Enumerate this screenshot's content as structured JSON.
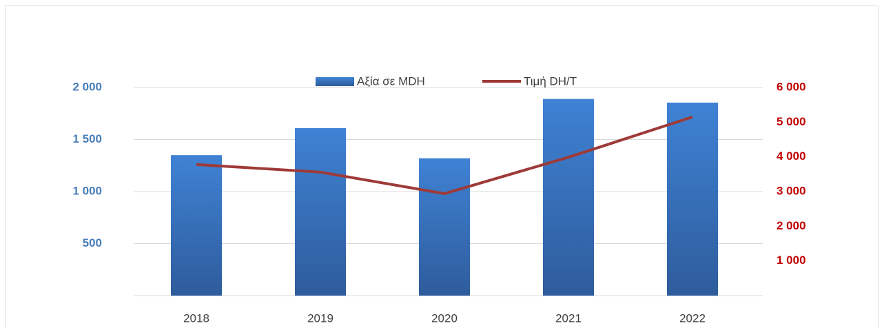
{
  "chart_data": {
    "type": "bar_line",
    "categories": [
      "2018",
      "2019",
      "2020",
      "2021",
      "2022"
    ],
    "series": [
      {
        "name": "Αξία σε MDH",
        "type": "bar",
        "color": "#3a78c9",
        "values": [
          1350,
          1610,
          1320,
          1890,
          1855
        ]
      },
      {
        "name": "Τιμή DH/T",
        "type": "line",
        "axis": "y2",
        "color": "#9e3a38",
        "values": [
          3780,
          3560,
          2940,
          3990,
          5150
        ]
      }
    ],
    "ylim": [
      0,
      2000
    ],
    "yticks": [
      {
        "value": 500,
        "label": "500"
      },
      {
        "value": 1000,
        "label": "1 000"
      },
      {
        "value": 1500,
        "label": "1 500"
      },
      {
        "value": 2000,
        "label": "2 000"
      }
    ],
    "y2lim": [
      0,
      6000
    ],
    "y2ticks": [
      {
        "value": 1000,
        "label": "1 000"
      },
      {
        "value": 2000,
        "label": "2 000"
      },
      {
        "value": 3000,
        "label": "3 000"
      },
      {
        "value": 4000,
        "label": "4 000"
      },
      {
        "value": 5000,
        "label": "5 000"
      },
      {
        "value": 6000,
        "label": "6 000"
      }
    ],
    "grid": true,
    "legend": "top"
  }
}
